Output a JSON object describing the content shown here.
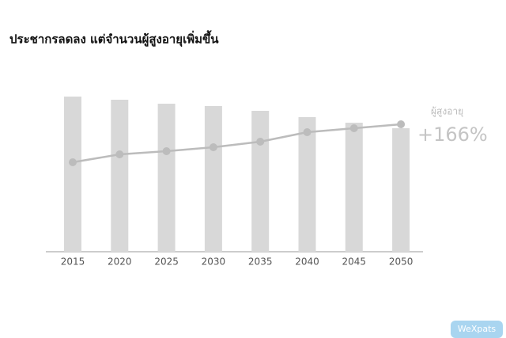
{
  "chart_data": {
    "type": "bar_line",
    "title": "ประชากรลดลง แต่จำนวนผู้สูงอายุเพิ่มขึ้น",
    "categories": [
      "2015",
      "2020",
      "2025",
      "2030",
      "2035",
      "2040",
      "2045",
      "2050"
    ],
    "series": [
      {
        "type": "bar",
        "color": "#d8d8d8",
        "values": [
          196,
          192,
          187,
          184,
          178,
          170,
          163,
          156
        ]
      },
      {
        "name": "ผู้สูงอายุ",
        "type": "line",
        "color": "#bcbcbc",
        "values": [
          113,
          123,
          127,
          132,
          139,
          151,
          156,
          161
        ]
      }
    ],
    "annotation": "+166%"
  },
  "watermark": "WeXpats"
}
